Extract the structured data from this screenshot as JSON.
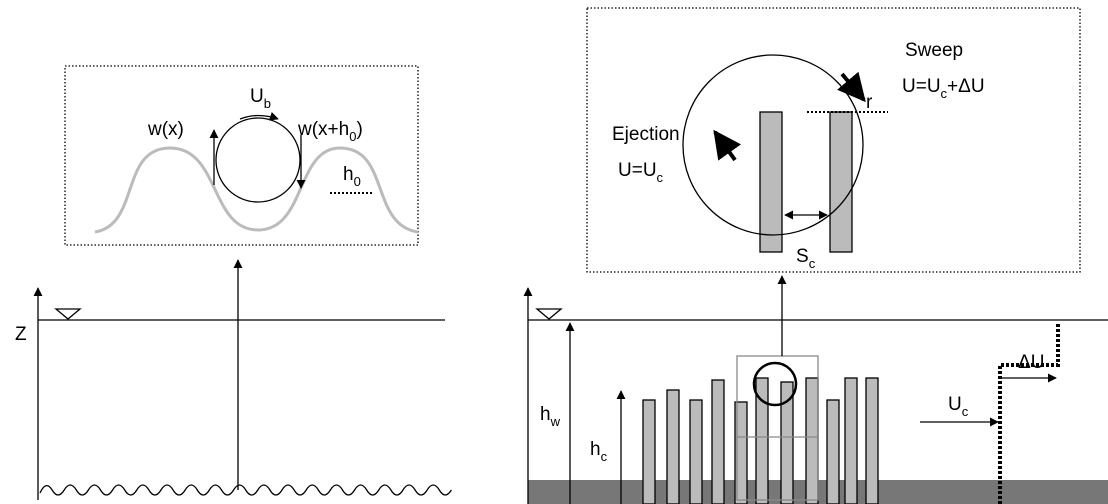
{
  "left": {
    "labels": {
      "w_x": "w(x)",
      "u_b": {
        "main": "U",
        "sub": "b"
      },
      "w_xh0": {
        "main": "w(x+h",
        "sub": "0",
        "tail": ")"
      },
      "h0": {
        "main": "h",
        "sub": "0"
      },
      "z": "Z"
    }
  },
  "right": {
    "labels": {
      "sweep": "Sweep",
      "sweep_u": {
        "main": "U=U",
        "sub": "c",
        "tail": "+ΔU"
      },
      "ejection": "Ejection",
      "ejection_u": {
        "main": "U=U",
        "sub": "c"
      },
      "r": "r",
      "s_c": {
        "main": "S",
        "sub": "c"
      },
      "h_w": {
        "main": "h",
        "sub": "w"
      },
      "h_c": {
        "main": "h",
        "sub": "c"
      },
      "u_c": {
        "main": "U",
        "sub": "c"
      },
      "delta_u": "ΔU"
    }
  }
}
